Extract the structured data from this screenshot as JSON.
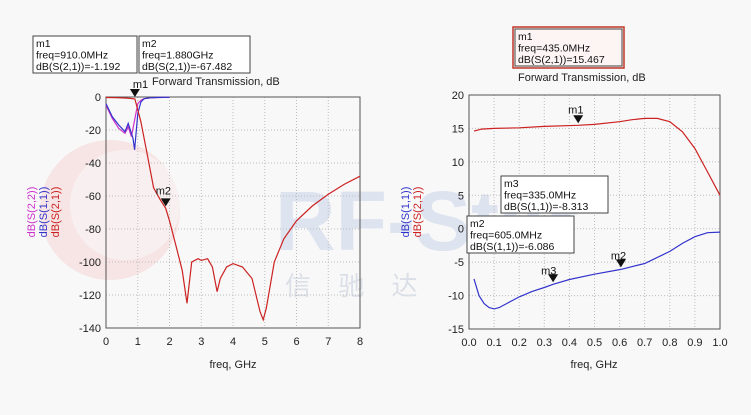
{
  "watermark": {
    "text": "RF-Star",
    "subtext": "信 驰 达"
  },
  "chart_data": [
    {
      "type": "line",
      "title": "Forward Transmission, dB",
      "xlabel": "freq, GHz",
      "ylabels": [
        {
          "text": "dB(S(2,2))",
          "color": "#cc33cc"
        },
        {
          "text": "dB(S(1,1))",
          "color": "#3333cc"
        },
        {
          "text": "dB(S(2,1))",
          "color": "#cc2222"
        }
      ],
      "xlim": [
        0,
        8
      ],
      "ylim": [
        -140,
        0
      ],
      "xticks": [
        "0",
        "1",
        "2",
        "3",
        "4",
        "5",
        "6",
        "7",
        "8"
      ],
      "yticks": [
        "0",
        "-20",
        "-40",
        "-60",
        "-80",
        "-100",
        "-120",
        "-140"
      ],
      "xtick_values": [
        0,
        1,
        2,
        3,
        4,
        5,
        6,
        7,
        8
      ],
      "ytick_values": [
        0,
        -20,
        -40,
        -60,
        -80,
        -100,
        -120,
        -140
      ],
      "grid": true,
      "series": [
        {
          "color": "#cc33cc",
          "x": [
            0,
            0.2,
            0.4,
            0.6,
            0.7,
            0.8,
            0.9,
            1.0,
            1.1,
            1.2,
            1.4,
            1.6,
            2.0
          ],
          "y": [
            -5,
            -13,
            -19,
            -22,
            -18,
            -24,
            -14,
            -4,
            -2,
            -1,
            -0.5,
            -0.3,
            -0.2
          ]
        },
        {
          "color": "#3333cc",
          "x": [
            0,
            0.2,
            0.4,
            0.6,
            0.7,
            0.8,
            0.85,
            0.9,
            1.0,
            1.1,
            1.2,
            1.4,
            1.6,
            2.0
          ],
          "y": [
            -4,
            -12,
            -17,
            -21,
            -16,
            -22,
            -25,
            -32,
            -10,
            -3,
            -1,
            -0.5,
            -0.3,
            -0.2
          ]
        },
        {
          "color": "#cc2222",
          "x": [
            0,
            0.3,
            0.6,
            0.8,
            0.91,
            1.1,
            1.3,
            1.5,
            1.7,
            1.88,
            2.0,
            2.2,
            2.4,
            2.55,
            2.7,
            2.9,
            3.0,
            3.2,
            3.35,
            3.5,
            3.6,
            3.8,
            4.0,
            4.3,
            4.6,
            4.85,
            4.95,
            5.05,
            5.3,
            5.6,
            6.0,
            6.5,
            7.0,
            7.5,
            8.0
          ],
          "y": [
            -0.3,
            -0.4,
            -0.6,
            -0.9,
            -1.192,
            -15,
            -35,
            -55,
            -62,
            -67.482,
            -75,
            -90,
            -105,
            -125,
            -100,
            -98,
            -99,
            -98,
            -103,
            -118,
            -110,
            -103,
            -101,
            -103,
            -110,
            -130,
            -135,
            -128,
            -100,
            -86,
            -75,
            -66,
            -59,
            -53,
            -48
          ]
        }
      ],
      "markers": [
        {
          "label": "m1",
          "x": 0.91,
          "y": -1.192
        },
        {
          "label": "m2",
          "x": 1.88,
          "y": -67.482
        }
      ],
      "readouts": [
        {
          "lines": [
            "m1",
            "freq=910.0MHz",
            "dB(S(2,1))=-1.192"
          ],
          "highlighted": false
        },
        {
          "lines": [
            "m2",
            "freq=1.880GHz",
            "dB(S(2,1))=-67.482"
          ],
          "highlighted": false
        }
      ]
    },
    {
      "type": "line",
      "title": "Forward Transmission, dB",
      "xlabel": "freq, GHz",
      "ylabels": [
        {
          "text": "dB(S(1,1))",
          "color": "#3333cc"
        },
        {
          "text": "dB(S(2,1))",
          "color": "#cc2222"
        }
      ],
      "xlim": [
        0,
        1.0
      ],
      "ylim": [
        -15,
        20
      ],
      "xticks": [
        "0.0",
        "0.1",
        "0.2",
        "0.3",
        "0.4",
        "0.5",
        "0.6",
        "0.7",
        "0.8",
        "0.9",
        "1.0"
      ],
      "yticks": [
        "20",
        "15",
        "10",
        "5",
        "0",
        "-5",
        "-10",
        "-15"
      ],
      "xtick_values": [
        0,
        0.1,
        0.2,
        0.3,
        0.4,
        0.5,
        0.6,
        0.7,
        0.8,
        0.9,
        1.0
      ],
      "ytick_values": [
        20,
        15,
        10,
        5,
        0,
        -5,
        -10,
        -15
      ],
      "grid": true,
      "series": [
        {
          "color": "#cc2222",
          "x": [
            0.02,
            0.05,
            0.1,
            0.2,
            0.3,
            0.435,
            0.5,
            0.6,
            0.65,
            0.7,
            0.75,
            0.8,
            0.85,
            0.9,
            0.95,
            1.0
          ],
          "y": [
            14.6,
            14.9,
            15.0,
            15.1,
            15.3,
            15.467,
            15.6,
            16.0,
            16.3,
            16.5,
            16.5,
            16.0,
            14.5,
            12.0,
            8.5,
            5.0
          ]
        },
        {
          "color": "#3333cc",
          "x": [
            0.02,
            0.04,
            0.06,
            0.08,
            0.1,
            0.12,
            0.15,
            0.2,
            0.25,
            0.3,
            0.335,
            0.4,
            0.5,
            0.605,
            0.7,
            0.8,
            0.85,
            0.9,
            0.95,
            1.0
          ],
          "y": [
            -7.5,
            -10.0,
            -11.2,
            -11.8,
            -12.0,
            -11.8,
            -11.2,
            -10.2,
            -9.4,
            -8.8,
            -8.313,
            -7.6,
            -6.8,
            -6.086,
            -5.2,
            -3.4,
            -2.2,
            -1.2,
            -0.6,
            -0.5
          ]
        }
      ],
      "markers": [
        {
          "label": "m1",
          "x": 0.435,
          "y": 15.467
        },
        {
          "label": "m3",
          "x": 0.335,
          "y": -8.313
        },
        {
          "label": "m2",
          "x": 0.605,
          "y": -6.086
        }
      ],
      "readouts": [
        {
          "lines": [
            "m1",
            "freq=435.0MHz",
            "dB(S(2,1))=15.467"
          ],
          "highlighted": true
        },
        {
          "lines": [
            "m3",
            "freq=335.0MHz",
            "dB(S(1,1))=-8.313"
          ],
          "highlighted": false
        },
        {
          "lines": [
            "m2",
            "freq=605.0MHz",
            "dB(S(1,1))=-6.086"
          ],
          "highlighted": false
        }
      ]
    }
  ]
}
